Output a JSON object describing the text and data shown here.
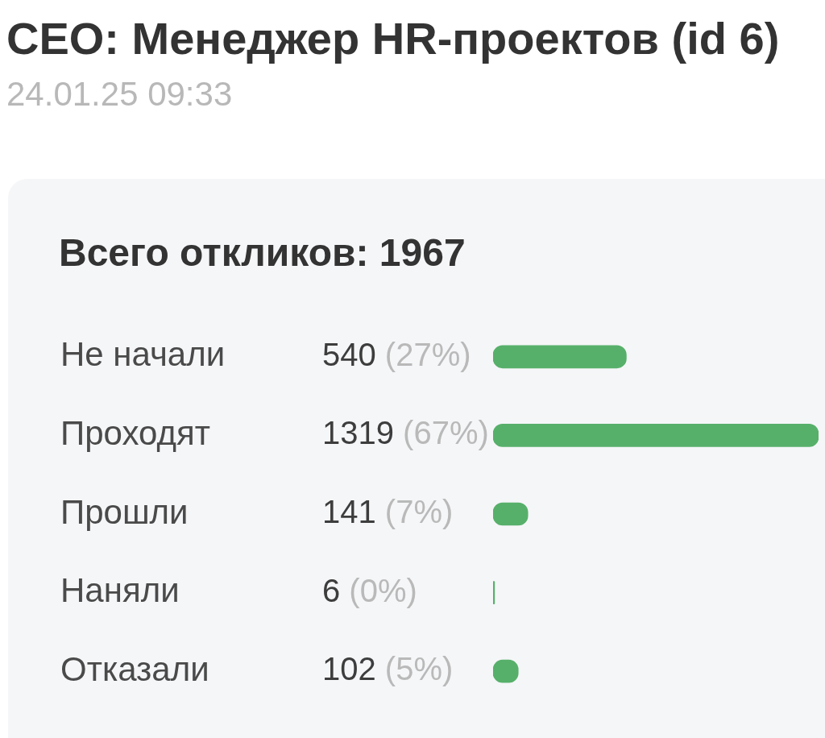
{
  "chart_data": {
    "type": "bar",
    "orientation": "horizontal",
    "title": "CEO: Менеджер HR-проектов (id 6)",
    "subtitle": "24.01.25 09:33",
    "annotations": [
      "Всего откликов: 1967"
    ],
    "categories": [
      "Не начали",
      "Проходят",
      "Прошли",
      "Наняли",
      "Отказали"
    ],
    "values": [
      540,
      1319,
      141,
      6,
      102
    ],
    "value_labels": [
      "540 (27%)",
      "1319 (67%)",
      "141 (7%)",
      "6 (0%)",
      "102 (5%)"
    ],
    "color": "#57b06a"
  }
}
